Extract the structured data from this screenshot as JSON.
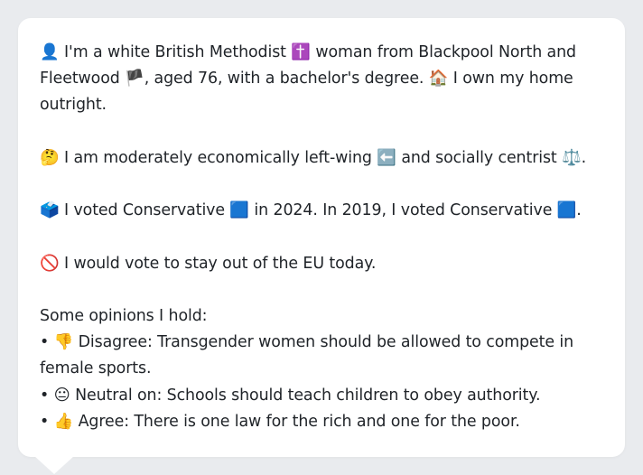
{
  "profile": {
    "line1_emoji": "👤",
    "line1": "I'm a white British Methodist",
    "religion_emoji": "✝️",
    "line1b": "woman from Blackpool North and Fleetwood",
    "flag_emoji": "🏴",
    "line1c": ", aged 76, with a bachelor's degree.",
    "home_emoji": "🏠",
    "line1d": "I own my home outright."
  },
  "politics": {
    "think_emoji": "🤔",
    "text_a": "I am moderately economically left-wing",
    "left_emoji": "⬅️",
    "text_b": "and socially centrist",
    "scales_emoji": "⚖️",
    "text_c": "."
  },
  "votes": {
    "ballot_emoji": "🗳️",
    "text_a": "I voted Conservative",
    "party_emoji": "🟦",
    "text_b": "in 2024. In 2019, I voted Conservative",
    "party_emoji2": "🟦",
    "text_c": "."
  },
  "eu": {
    "no_emoji": "🚫",
    "text": "I would vote to stay out of the EU today."
  },
  "opinions": {
    "heading": "Some opinions I hold:",
    "items": [
      {
        "bullet": "•",
        "emoji": "👎",
        "text": "Disagree: Transgender women should be allowed to compete in female sports."
      },
      {
        "bullet": "•",
        "emoji": "😐",
        "text": "Neutral on: Schools should teach children to obey authority."
      },
      {
        "bullet": "•",
        "emoji": "👍",
        "text": "Agree: There is one law for the rich and one for the poor."
      }
    ]
  }
}
